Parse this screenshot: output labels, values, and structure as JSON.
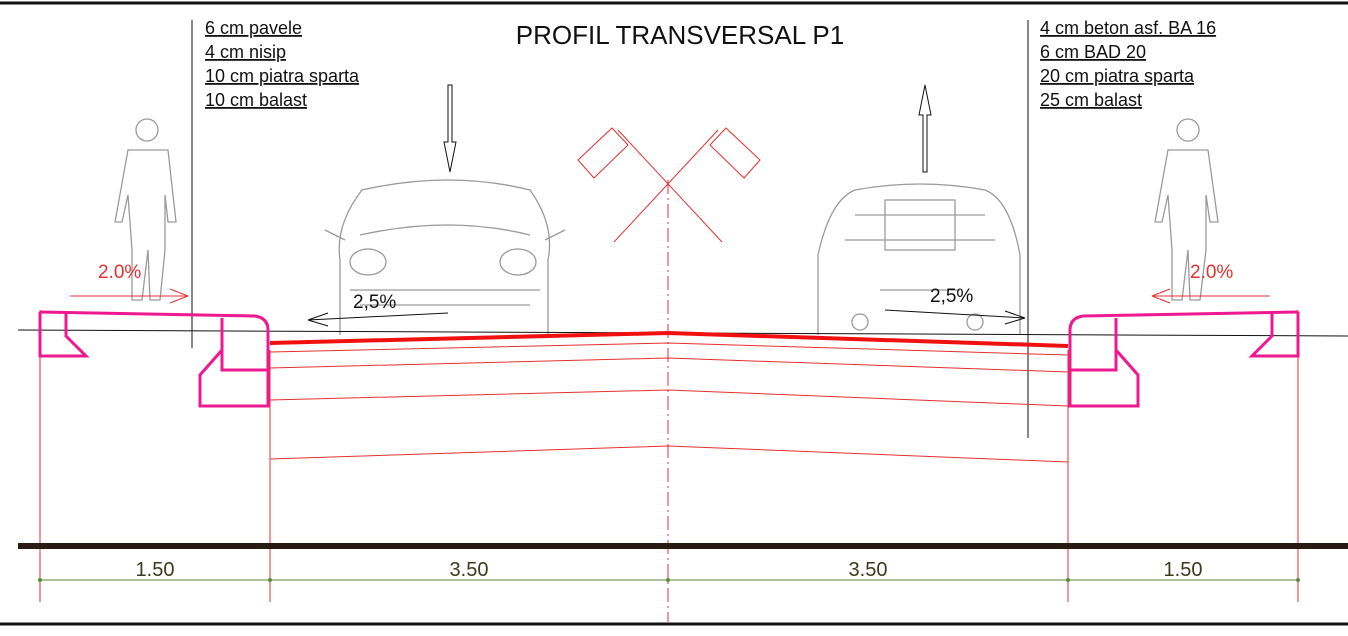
{
  "title": "PROFIL TRANSVERSAL P1",
  "left_layers": [
    "6 cm pavele",
    "4 cm nisip",
    "10 cm piatra sparta",
    "10 cm balast"
  ],
  "right_layers": [
    "4 cm beton asf. BA 16",
    "6 cm BAD 20",
    "20 cm piatra sparta",
    "25 cm balast"
  ],
  "slopes": {
    "left_sidewalk": "2.0%",
    "left_lane": "2,5%",
    "right_lane": "2,5%",
    "right_sidewalk": "2.0%"
  },
  "dimensions": [
    "1.50",
    "3.50",
    "3.50",
    "1.50"
  ]
}
